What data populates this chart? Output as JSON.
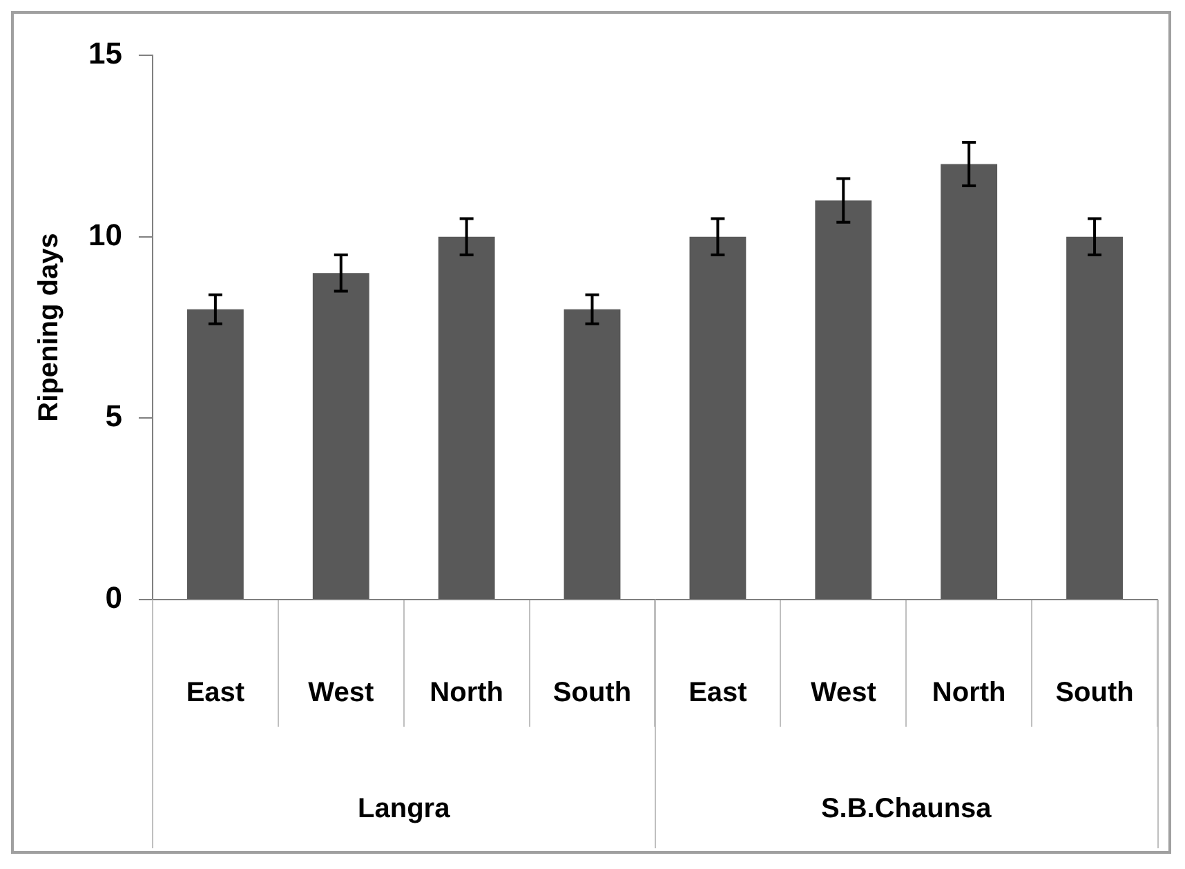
{
  "chart_data": {
    "type": "bar",
    "ylabel": "Ripening days",
    "categories": [
      "East",
      "West",
      "North",
      "South",
      "East",
      "West",
      "North",
      "South"
    ],
    "values": [
      8,
      9,
      10,
      8,
      10,
      11,
      12,
      10
    ],
    "errors": [
      0.4,
      0.5,
      0.5,
      0.4,
      0.5,
      0.6,
      0.6,
      0.5
    ],
    "color": "#595959",
    "ylim": [
      0,
      15
    ],
    "yticks": [
      0,
      5,
      10,
      15
    ],
    "grid": false,
    "legend": false,
    "annotations": [
      "Langra",
      "S.B.Chaunsa"
    ]
  }
}
